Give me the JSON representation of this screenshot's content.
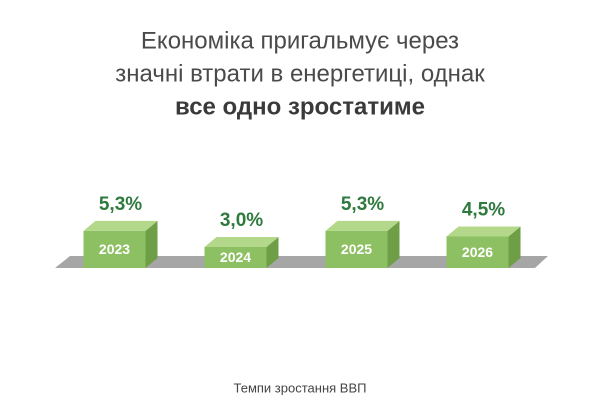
{
  "chart_data": {
    "type": "bar3d",
    "title": [
      "Економіка пригальмує через",
      "значні втрати в енергетиці, однак",
      "все одно зростатиме"
    ],
    "caption": "Темпи зростання ВВП",
    "categories": [
      "2023",
      "2024",
      "2025",
      "2026"
    ],
    "values": [
      5.3,
      3.0,
      5.3,
      4.5
    ],
    "value_labels": [
      "5,3%",
      "3,0%",
      "5,3%",
      "4,5%"
    ],
    "color": "#8dc063"
  }
}
